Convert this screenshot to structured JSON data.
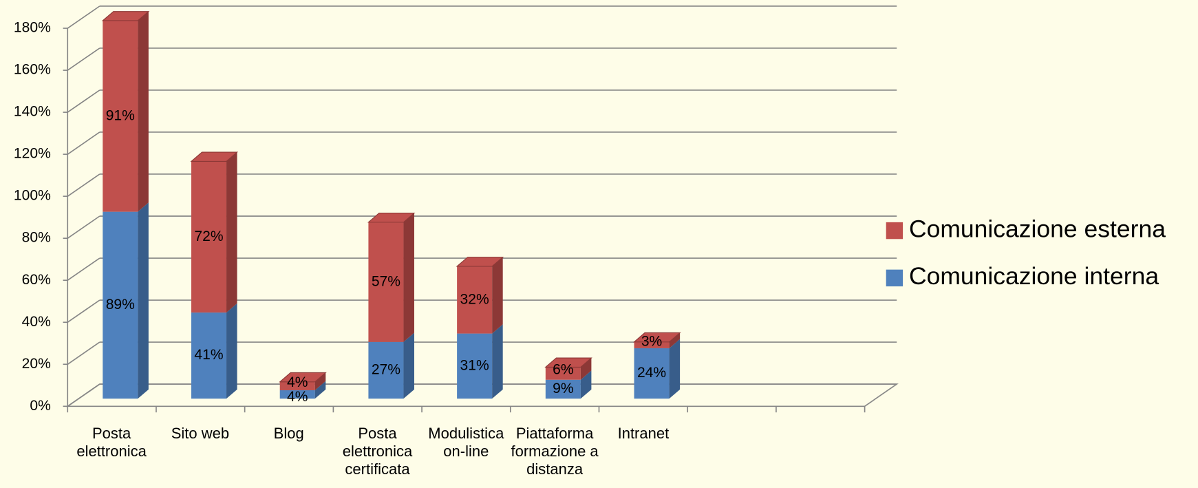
{
  "chart_data": {
    "type": "bar3d_stacked",
    "categories": [
      "Posta elettronica",
      "Sito web",
      "Blog",
      "Posta elettronica certificata",
      "Modulistica on-line",
      "Piattaforma formazione a distanza",
      "Intranet",
      null,
      null
    ],
    "series": [
      {
        "name": "Comunicazione interna",
        "color": "#4f81bd",
        "side_color": "#385d8a",
        "values": [
          89,
          41,
          4,
          27,
          31,
          9,
          24,
          null,
          null
        ],
        "value_labels": [
          "89%",
          "41%",
          "4%",
          "27%",
          "31%",
          "9%",
          "24%",
          null,
          null
        ]
      },
      {
        "name": "Comunicazione esterna",
        "color": "#c0504d",
        "side_color": "#8c3836",
        "values": [
          91,
          72,
          4,
          57,
          32,
          6,
          3,
          null,
          null
        ],
        "value_labels": [
          "91%",
          "72%",
          "4%",
          "57%",
          "32%",
          "6%",
          "3%",
          null,
          null
        ]
      }
    ],
    "ylim": [
      0,
      180
    ],
    "yticks": [
      {
        "value": 0,
        "label": "0%"
      },
      {
        "value": 20,
        "label": "20%"
      },
      {
        "value": 40,
        "label": "40%"
      },
      {
        "value": 60,
        "label": "60%"
      },
      {
        "value": 80,
        "label": "80%"
      },
      {
        "value": 100,
        "label": "100%"
      },
      {
        "value": 120,
        "label": "120%"
      },
      {
        "value": 140,
        "label": "140%"
      },
      {
        "value": 160,
        "label": "160%"
      },
      {
        "value": 180,
        "label": "180%"
      }
    ],
    "grid": true,
    "stacked": true,
    "legend": "right",
    "legend_order": "reverse"
  }
}
